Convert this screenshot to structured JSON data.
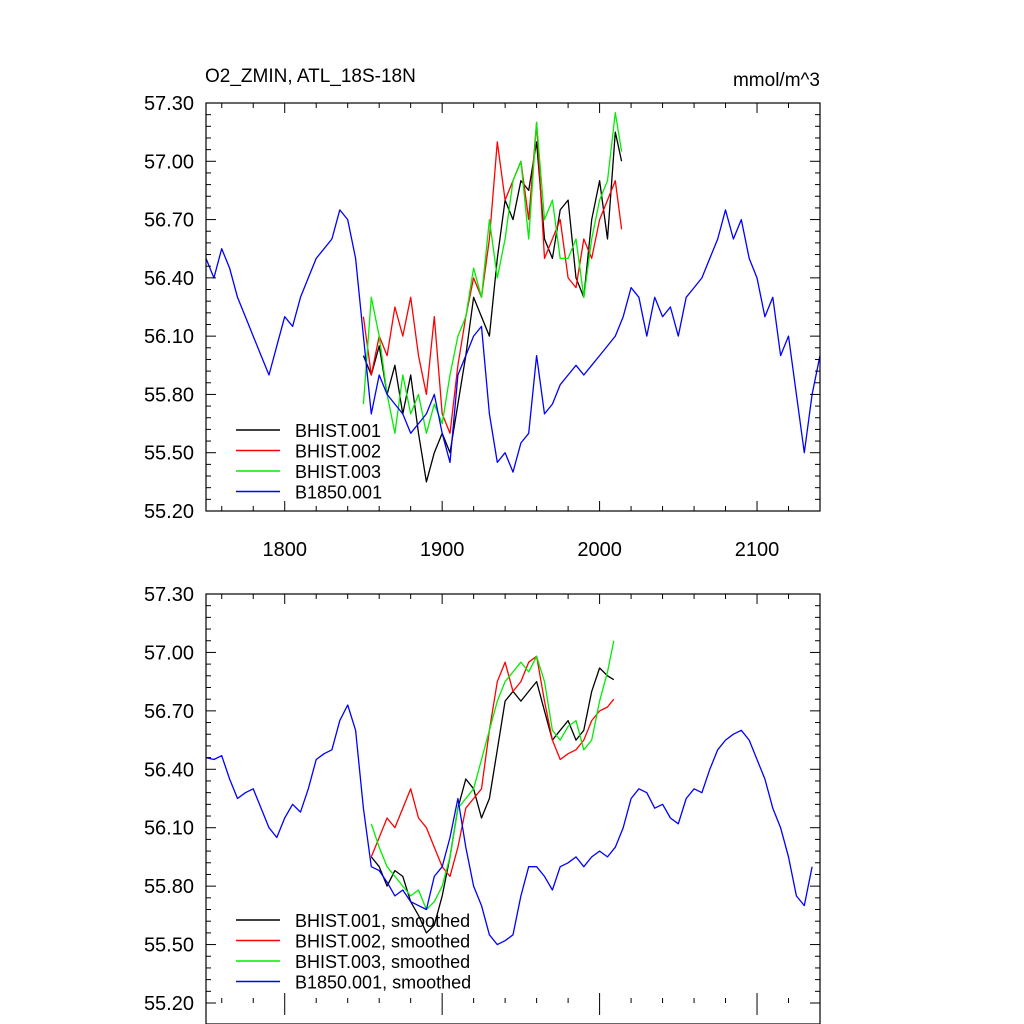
{
  "chart_data": [
    {
      "type": "line",
      "title": "O2_ZMIN, ATL_18S-18N",
      "units": "mmol/m^3",
      "xlim": [
        1750,
        2140
      ],
      "ylim": [
        55.2,
        57.3
      ],
      "x_ticks": [
        1800,
        1900,
        2000,
        2100
      ],
      "x_tick_labels": [
        "1800",
        "1900",
        "2000",
        "2100"
      ],
      "y_ticks": [
        55.2,
        55.5,
        55.8,
        56.1,
        56.4,
        56.7,
        57.0,
        57.3
      ],
      "y_tick_labels": [
        "55.20",
        "55.50",
        "55.80",
        "56.10",
        "56.40",
        "56.70",
        "57.00",
        "57.30"
      ],
      "grid": false,
      "legend_position": "bottom-left",
      "series": [
        {
          "name": "BHIST.001",
          "color": "#000000",
          "x": [
            1850,
            1855,
            1860,
            1865,
            1870,
            1875,
            1880,
            1885,
            1890,
            1895,
            1900,
            1905,
            1910,
            1915,
            1920,
            1925,
            1930,
            1935,
            1940,
            1945,
            1950,
            1955,
            1960,
            1965,
            1970,
            1975,
            1980,
            1985,
            1990,
            1995,
            2000,
            2005,
            2010,
            2014
          ],
          "y": [
            56.0,
            55.9,
            56.05,
            55.8,
            55.95,
            55.7,
            55.9,
            55.6,
            55.35,
            55.5,
            55.6,
            55.5,
            55.75,
            56.0,
            56.3,
            56.2,
            56.1,
            56.5,
            56.8,
            56.7,
            56.9,
            56.85,
            57.1,
            56.6,
            56.5,
            56.75,
            56.8,
            56.4,
            56.3,
            56.7,
            56.9,
            56.6,
            57.15,
            57.0
          ]
        },
        {
          "name": "BHIST.002",
          "color": "#ff0000",
          "x": [
            1850,
            1855,
            1860,
            1865,
            1870,
            1875,
            1880,
            1885,
            1890,
            1895,
            1900,
            1905,
            1910,
            1915,
            1920,
            1925,
            1930,
            1935,
            1940,
            1945,
            1950,
            1955,
            1960,
            1965,
            1970,
            1975,
            1980,
            1985,
            1990,
            1995,
            2000,
            2005,
            2010,
            2014
          ],
          "y": [
            56.2,
            55.9,
            56.1,
            56.0,
            56.25,
            56.1,
            56.3,
            56.0,
            55.8,
            56.2,
            55.7,
            55.6,
            55.95,
            56.2,
            56.4,
            56.3,
            56.6,
            57.1,
            56.8,
            56.9,
            57.0,
            56.7,
            57.2,
            56.5,
            56.6,
            56.7,
            56.4,
            56.35,
            56.6,
            56.5,
            56.7,
            56.8,
            56.9,
            56.65
          ]
        },
        {
          "name": "BHIST.003",
          "color": "#00ee00",
          "x": [
            1850,
            1855,
            1860,
            1865,
            1870,
            1875,
            1880,
            1885,
            1890,
            1895,
            1900,
            1905,
            1910,
            1915,
            1920,
            1925,
            1930,
            1935,
            1940,
            1945,
            1950,
            1955,
            1960,
            1965,
            1970,
            1975,
            1980,
            1985,
            1990,
            1995,
            2000,
            2005,
            2010,
            2014
          ],
          "y": [
            55.75,
            56.3,
            56.1,
            55.8,
            55.6,
            55.9,
            55.7,
            55.8,
            55.6,
            55.75,
            55.65,
            55.9,
            56.1,
            56.2,
            56.45,
            56.3,
            56.7,
            56.4,
            56.6,
            56.9,
            57.0,
            56.6,
            57.2,
            56.7,
            56.8,
            56.5,
            56.5,
            56.6,
            56.3,
            56.6,
            56.8,
            56.9,
            57.25,
            57.05
          ]
        },
        {
          "name": "B1850.001",
          "color": "#0000ff",
          "x": [
            1750,
            1755,
            1760,
            1765,
            1770,
            1775,
            1780,
            1785,
            1790,
            1795,
            1800,
            1805,
            1810,
            1815,
            1820,
            1825,
            1830,
            1835,
            1840,
            1845,
            1850,
            1855,
            1860,
            1865,
            1870,
            1875,
            1880,
            1885,
            1890,
            1895,
            1900,
            1905,
            1910,
            1915,
            1920,
            1925,
            1930,
            1935,
            1940,
            1945,
            1950,
            1955,
            1960,
            1965,
            1970,
            1975,
            1980,
            1985,
            1990,
            1995,
            2000,
            2005,
            2010,
            2015,
            2020,
            2025,
            2030,
            2035,
            2040,
            2045,
            2050,
            2055,
            2060,
            2065,
            2070,
            2075,
            2080,
            2085,
            2090,
            2095,
            2100,
            2105,
            2110,
            2115,
            2120,
            2125,
            2130,
            2135,
            2140
          ],
          "y": [
            56.5,
            56.4,
            56.55,
            56.45,
            56.3,
            56.2,
            56.1,
            56.0,
            55.9,
            56.05,
            56.2,
            56.15,
            56.3,
            56.4,
            56.5,
            56.55,
            56.6,
            56.75,
            56.7,
            56.5,
            56.1,
            55.7,
            55.9,
            55.8,
            55.75,
            55.7,
            55.6,
            55.65,
            55.7,
            55.8,
            55.6,
            55.45,
            55.9,
            56.0,
            56.1,
            56.15,
            55.7,
            55.45,
            55.5,
            55.4,
            55.55,
            55.6,
            56.0,
            55.7,
            55.75,
            55.85,
            55.9,
            55.95,
            55.9,
            55.95,
            56.0,
            56.05,
            56.1,
            56.2,
            56.35,
            56.3,
            56.1,
            56.3,
            56.2,
            56.25,
            56.1,
            56.3,
            56.35,
            56.4,
            56.5,
            56.6,
            56.75,
            56.6,
            56.7,
            56.5,
            56.4,
            56.2,
            56.3,
            56.0,
            56.1,
            55.8,
            55.5,
            55.8,
            56.0
          ]
        }
      ]
    },
    {
      "type": "line",
      "xlim": [
        1750,
        2140
      ],
      "ylim": [
        55.2,
        57.3
      ],
      "x_ticks": [
        1800,
        1900,
        2000,
        2100
      ],
      "y_ticks": [
        55.2,
        55.5,
        55.8,
        56.1,
        56.4,
        56.7,
        57.0,
        57.3
      ],
      "y_tick_labels": [
        "55.20",
        "55.50",
        "55.80",
        "56.10",
        "56.40",
        "56.70",
        "57.00",
        "57.30"
      ],
      "grid": false,
      "legend_position": "bottom-left",
      "series": [
        {
          "name": "BHIST.001, smoothed",
          "color": "#000000",
          "x": [
            1855,
            1860,
            1865,
            1870,
            1875,
            1880,
            1885,
            1890,
            1895,
            1900,
            1905,
            1910,
            1915,
            1920,
            1925,
            1930,
            1935,
            1940,
            1945,
            1950,
            1955,
            1960,
            1965,
            1970,
            1975,
            1980,
            1985,
            1990,
            1995,
            2000,
            2005,
            2009
          ],
          "y": [
            55.95,
            55.9,
            55.8,
            55.88,
            55.85,
            55.72,
            55.65,
            55.56,
            55.6,
            55.75,
            55.95,
            56.2,
            56.35,
            56.3,
            56.15,
            56.25,
            56.5,
            56.75,
            56.8,
            56.75,
            56.8,
            56.85,
            56.7,
            56.55,
            56.6,
            56.65,
            56.55,
            56.6,
            56.8,
            56.92,
            56.88,
            56.86
          ]
        },
        {
          "name": "BHIST.002, smoothed",
          "color": "#ff0000",
          "x": [
            1855,
            1860,
            1865,
            1870,
            1875,
            1880,
            1885,
            1890,
            1895,
            1900,
            1905,
            1910,
            1915,
            1920,
            1925,
            1930,
            1935,
            1940,
            1945,
            1950,
            1955,
            1960,
            1965,
            1970,
            1975,
            1980,
            1985,
            1990,
            1995,
            2000,
            2005,
            2009
          ],
          "y": [
            55.95,
            56.05,
            56.15,
            56.1,
            56.2,
            56.3,
            56.15,
            56.1,
            56.0,
            55.9,
            55.85,
            56.0,
            56.2,
            56.25,
            56.3,
            56.6,
            56.85,
            56.95,
            56.8,
            56.85,
            56.95,
            56.98,
            56.75,
            56.55,
            56.45,
            56.48,
            56.5,
            56.55,
            56.65,
            56.7,
            56.72,
            56.76
          ]
        },
        {
          "name": "BHIST.003, smoothed",
          "color": "#00ee00",
          "x": [
            1855,
            1860,
            1865,
            1870,
            1875,
            1880,
            1885,
            1890,
            1895,
            1900,
            1905,
            1910,
            1915,
            1920,
            1925,
            1930,
            1935,
            1940,
            1945,
            1950,
            1955,
            1960,
            1965,
            1970,
            1975,
            1980,
            1985,
            1990,
            1995,
            2000,
            2005,
            2009
          ],
          "y": [
            56.12,
            56.0,
            55.9,
            55.85,
            55.8,
            55.75,
            55.78,
            55.68,
            55.72,
            55.8,
            55.95,
            56.2,
            56.25,
            56.3,
            56.45,
            56.6,
            56.75,
            56.85,
            56.9,
            56.95,
            56.9,
            56.98,
            56.85,
            56.6,
            56.55,
            56.62,
            56.65,
            56.5,
            56.55,
            56.75,
            56.9,
            57.06
          ]
        },
        {
          "name": "B1850.001, smoothed",
          "color": "#0000ff",
          "x": [
            1750,
            1755,
            1760,
            1765,
            1770,
            1775,
            1780,
            1785,
            1790,
            1795,
            1800,
            1805,
            1810,
            1815,
            1820,
            1825,
            1830,
            1835,
            1840,
            1845,
            1850,
            1855,
            1860,
            1865,
            1870,
            1875,
            1880,
            1885,
            1890,
            1895,
            1900,
            1905,
            1910,
            1915,
            1920,
            1925,
            1930,
            1935,
            1940,
            1945,
            1950,
            1955,
            1960,
            1965,
            1970,
            1975,
            1980,
            1985,
            1990,
            1995,
            2000,
            2005,
            2010,
            2015,
            2020,
            2025,
            2030,
            2035,
            2040,
            2045,
            2050,
            2055,
            2060,
            2065,
            2070,
            2075,
            2080,
            2085,
            2090,
            2095,
            2100,
            2105,
            2110,
            2115,
            2120,
            2125,
            2130,
            2135
          ],
          "y": [
            56.46,
            56.45,
            56.47,
            56.35,
            56.25,
            56.28,
            56.3,
            56.2,
            56.1,
            56.05,
            56.15,
            56.22,
            56.18,
            56.3,
            56.45,
            56.48,
            56.5,
            56.65,
            56.73,
            56.6,
            56.2,
            55.9,
            55.88,
            55.82,
            55.75,
            55.78,
            55.72,
            55.7,
            55.68,
            55.85,
            55.9,
            56.05,
            56.25,
            56.0,
            55.8,
            55.7,
            55.55,
            55.5,
            55.52,
            55.55,
            55.75,
            55.9,
            55.9,
            55.85,
            55.78,
            55.9,
            55.92,
            55.95,
            55.9,
            55.95,
            55.98,
            55.95,
            56.0,
            56.1,
            56.25,
            56.3,
            56.28,
            56.2,
            56.22,
            56.15,
            56.12,
            56.25,
            56.3,
            56.28,
            56.4,
            56.5,
            56.55,
            56.58,
            56.6,
            56.55,
            56.45,
            56.35,
            56.2,
            56.1,
            55.95,
            55.75,
            55.7,
            55.9
          ]
        }
      ]
    }
  ]
}
